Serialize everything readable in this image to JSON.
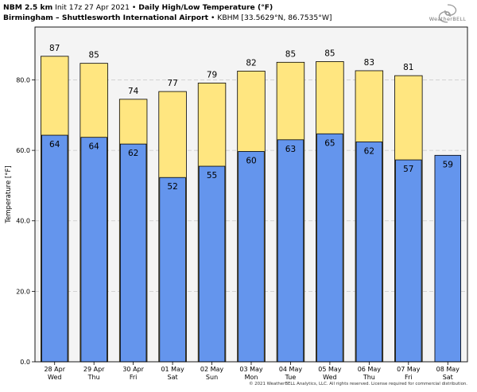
{
  "header": {
    "line1_bold": "NBM 2.5 km",
    "line1_init": " Init 17z 27 Apr 2021 • ",
    "line1_title": "Daily High/Low Temperature (°F)",
    "line2_bold": "Birmingham – Shuttlesworth International Airport",
    "line2_rest": " • KBHM [33.5629°N, 86.7535°W]"
  },
  "logo": {
    "text": "WeatherBELL",
    "icon": "weatherbell-swirl-icon"
  },
  "footer": "© 2021 WeatherBELL Analytics, LLC. All rights reserved. License required for commercial distribution.",
  "colors": {
    "high": "#ffe680",
    "low": "#6495ed",
    "plot_bg": "#f4f4f4",
    "grid": "#c8c8c8"
  },
  "chart_data": {
    "type": "bar",
    "ylabel": "Temperature [°F]",
    "ylim": [
      0,
      95
    ],
    "yticks": [
      "0.0",
      "20.0",
      "40.0",
      "60.0",
      "80.0"
    ],
    "categories": [
      {
        "date": "28 Apr",
        "day": "Wed"
      },
      {
        "date": "29 Apr",
        "day": "Thu"
      },
      {
        "date": "30 Apr",
        "day": "Fri"
      },
      {
        "date": "01 May",
        "day": "Sat"
      },
      {
        "date": "02 May",
        "day": "Sun"
      },
      {
        "date": "03 May",
        "day": "Mon"
      },
      {
        "date": "04 May",
        "day": "Tue"
      },
      {
        "date": "05 May",
        "day": "Wed"
      },
      {
        "date": "06 May",
        "day": "Thu"
      },
      {
        "date": "07 May",
        "day": "Fri"
      },
      {
        "date": "08 May",
        "day": "Sat"
      }
    ],
    "series": [
      {
        "values": [
          86.7,
          84.7,
          74.5,
          76.7,
          79.1,
          82.5,
          85.0,
          85.2,
          82.6,
          81.2,
          null
        ],
        "labels": [
          "87",
          "85",
          "74",
          "77",
          "79",
          "82",
          "85",
          "85",
          "83",
          "81",
          ""
        ]
      },
      {
        "values": [
          64.3,
          63.7,
          61.8,
          52.3,
          55.5,
          59.7,
          63.0,
          64.7,
          62.4,
          57.3,
          58.6
        ],
        "labels": [
          "64",
          "64",
          "62",
          "52",
          "55",
          "60",
          "63",
          "65",
          "62",
          "57",
          "59"
        ]
      }
    ]
  }
}
